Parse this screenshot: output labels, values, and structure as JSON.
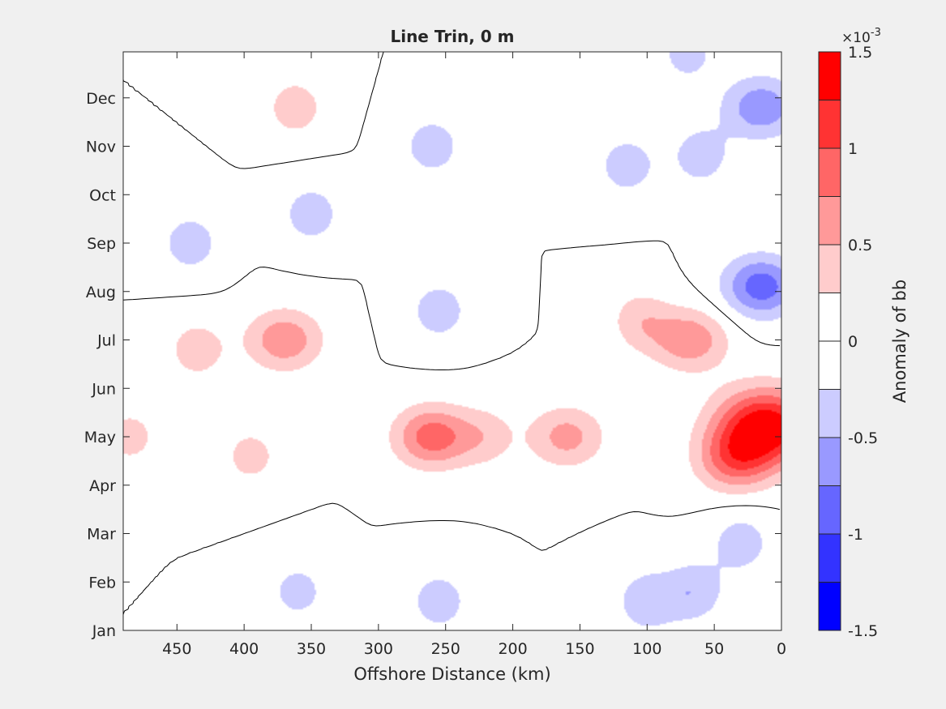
{
  "chart_data": {
    "type": "heatmap",
    "subtype": "filled-contour",
    "title": "Line Trin, 0 m",
    "xlabel": "Offshore Distance (km)",
    "ylabel": "",
    "xlim": [
      490,
      0
    ],
    "x_reversed": true,
    "x_ticks": [
      450,
      400,
      350,
      300,
      250,
      200,
      150,
      100,
      50,
      0
    ],
    "x_tick_labels": [
      "450",
      "400",
      "350",
      "300",
      "250",
      "200",
      "150",
      "100",
      "50",
      "0"
    ],
    "y_ticks": [
      "Jan",
      "Feb",
      "Mar",
      "Apr",
      "May",
      "Jun",
      "Jul",
      "Aug",
      "Sep",
      "Oct",
      "Nov",
      "Dec"
    ],
    "y_tick_months": [
      1,
      2,
      3,
      4,
      5,
      6,
      7,
      8,
      9,
      10,
      11,
      12
    ],
    "ylim_month": [
      1,
      12.95
    ],
    "zero_contour": "black line",
    "grid": false,
    "colorbar": {
      "label": "Anomaly of bb",
      "exponent_label": "×10",
      "exponent_power": "-3",
      "location": "right",
      "clim": [
        -1.5,
        1.5
      ],
      "tick_labels": [
        "1.5",
        "1",
        "0.5",
        "0",
        "-0.5",
        "-1",
        "-1.5"
      ],
      "tick_values": [
        1.5,
        1.0,
        0.5,
        0,
        -0.5,
        -1.0,
        -1.5
      ],
      "levels_from_top": [
        "#ff0000",
        "#ff3333",
        "#ff6666",
        "#ff9999",
        "#ffcccc",
        "#ffffff",
        "#ffffff",
        "#ccccff",
        "#9999ff",
        "#6666ff",
        "#3333ff",
        "#0000ff"
      ]
    },
    "anomaly_blobs": [
      {
        "x": 12,
        "month": 5.2,
        "peak": 1.5
      },
      {
        "x": 35,
        "month": 4.5,
        "peak": 0.75
      },
      {
        "x": 68,
        "month": 7.0,
        "peak": 0.7
      },
      {
        "x": 105,
        "month": 7.4,
        "peak": 0.4
      },
      {
        "x": 160,
        "month": 5.0,
        "peak": 0.6
      },
      {
        "x": 260,
        "month": 5.0,
        "peak": 0.9
      },
      {
        "x": 220,
        "month": 5.0,
        "peak": 0.35
      },
      {
        "x": 370,
        "month": 7.0,
        "peak": 0.7
      },
      {
        "x": 435,
        "month": 6.8,
        "peak": 0.4
      },
      {
        "x": 395,
        "month": 4.6,
        "peak": 0.35
      },
      {
        "x": 362,
        "month": 11.8,
        "peak": 0.4
      },
      {
        "x": 485,
        "month": 5.0,
        "peak": 0.35
      },
      {
        "x": 15,
        "month": 8.1,
        "peak": -0.9
      },
      {
        "x": 15,
        "month": 11.8,
        "peak": -0.7
      },
      {
        "x": 30,
        "month": 2.8,
        "peak": -0.4
      },
      {
        "x": 60,
        "month": 10.8,
        "peak": -0.4
      },
      {
        "x": 115,
        "month": 10.6,
        "peak": -0.4
      },
      {
        "x": 260,
        "month": 11.0,
        "peak": -0.4
      },
      {
        "x": 350,
        "month": 9.6,
        "peak": -0.4
      },
      {
        "x": 440,
        "month": 9.0,
        "peak": -0.4
      },
      {
        "x": 255,
        "month": 7.6,
        "peak": -0.4
      },
      {
        "x": 255,
        "month": 1.6,
        "peak": -0.4
      },
      {
        "x": 100,
        "month": 1.6,
        "peak": -0.45
      },
      {
        "x": 65,
        "month": 1.8,
        "peak": -0.45
      },
      {
        "x": 360,
        "month": 1.8,
        "peak": -0.35
      },
      {
        "x": 70,
        "month": 12.9,
        "peak": -0.35
      }
    ]
  }
}
